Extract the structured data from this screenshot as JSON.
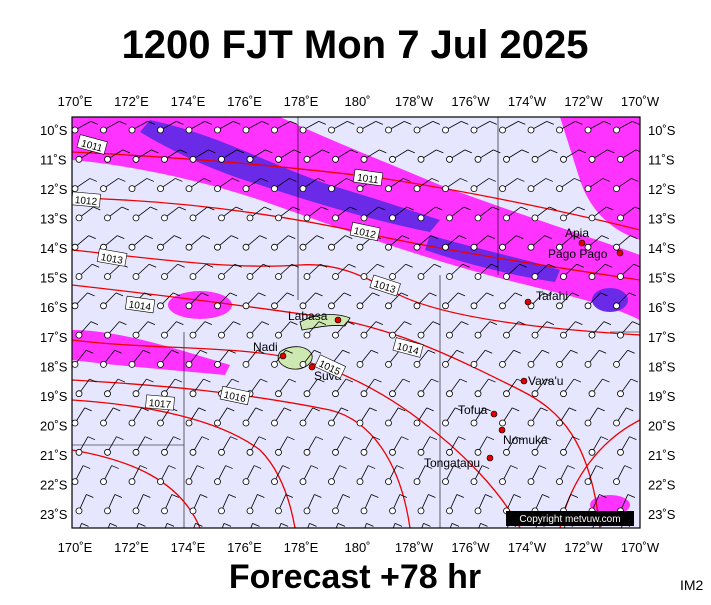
{
  "title": "1200 FJT Mon 7 Jul 2025",
  "footer": "Forecast +78 hr",
  "corner": "IM2",
  "copyright": "Copyright metvuw.com",
  "longitudes": [
    "170˚E",
    "172˚E",
    "174˚E",
    "176˚E",
    "178˚E",
    "180˚",
    "178˚W",
    "176˚W",
    "174˚W",
    "172˚W",
    "170˚W"
  ],
  "latitudes": [
    "10˚S",
    "11˚S",
    "12˚S",
    "13˚S",
    "14˚S",
    "15˚S",
    "16˚S",
    "17˚S",
    "18˚S",
    "19˚S",
    "20˚S",
    "21˚S",
    "22˚S",
    "23˚S"
  ],
  "places": [
    "Apia",
    "Pago Pago",
    "Tafahi",
    "Labasa",
    "Nadi",
    "Suva",
    "Vava'u",
    "Tofua",
    "Nomuka",
    "Tongatapu"
  ],
  "isobars": [
    "1011",
    "1011",
    "1012",
    "1012",
    "1013",
    "1013",
    "1014",
    "1014",
    "1015",
    "1016",
    "1017"
  ]
}
